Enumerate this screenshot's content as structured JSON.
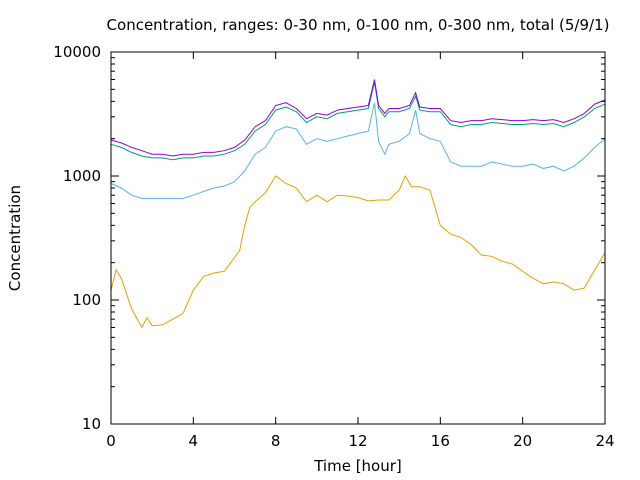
{
  "chart_data": {
    "type": "line",
    "title": "Concentration, ranges: 0-30 nm, 0-100 nm, 0-300 nm, total (5/9/1)",
    "xlabel": "Time [hour]",
    "ylabel": "Concentration",
    "xlim": [
      0,
      24
    ],
    "ylim": [
      10,
      10000
    ],
    "yscale": "log",
    "grid": false,
    "legend": "none",
    "x_ticks": [
      0,
      4,
      8,
      12,
      16,
      20,
      24
    ],
    "x_tick_labels": [
      "0",
      "4",
      "8",
      "12",
      "16",
      "20",
      "24"
    ],
    "y_ticks": [
      10,
      100,
      1000,
      10000
    ],
    "y_tick_labels": [
      "10",
      "100",
      "1000",
      "10000"
    ],
    "series": [
      {
        "color": "#e69f00",
        "x": [
          0,
          0.25,
          0.5,
          1,
          1.5,
          1.75,
          2,
          2.5,
          3,
          3.5,
          4,
          4.5,
          5,
          5.5,
          6,
          6.25,
          6.5,
          6.75,
          7,
          7.5,
          8,
          8.5,
          9,
          9.5,
          10,
          10.5,
          11,
          11.5,
          12,
          12.5,
          13,
          13.5,
          14,
          14.3,
          14.6,
          15,
          15.5,
          16,
          16.5,
          17,
          17.5,
          18,
          18.5,
          19,
          19.5,
          20,
          20.5,
          21,
          21.5,
          22,
          22.5,
          23,
          23.5,
          24
        ],
        "y": [
          120,
          175,
          150,
          85,
          60,
          72,
          62,
          63,
          70,
          78,
          120,
          155,
          165,
          170,
          220,
          250,
          400,
          560,
          620,
          730,
          1000,
          870,
          800,
          620,
          700,
          620,
          700,
          690,
          670,
          630,
          640,
          640,
          770,
          1000,
          820,
          820,
          770,
          400,
          340,
          320,
          280,
          230,
          225,
          205,
          195,
          170,
          150,
          135,
          140,
          135,
          120,
          125,
          175,
          240
        ]
      },
      {
        "color": "#56b4e9",
        "x": [
          0,
          0.5,
          1,
          1.5,
          2,
          2.5,
          3,
          3.5,
          4,
          4.5,
          5,
          5.5,
          6,
          6.5,
          7,
          7.5,
          8,
          8.5,
          9,
          9.5,
          10,
          10.5,
          11,
          11.5,
          12,
          12.5,
          12.8,
          13,
          13.3,
          13.5,
          14,
          14.5,
          14.8,
          15,
          15.5,
          16,
          16.5,
          17,
          17.5,
          18,
          18.5,
          19,
          19.5,
          20,
          20.5,
          21,
          21.5,
          22,
          22.5,
          23,
          23.5,
          24
        ],
        "y": [
          870,
          800,
          700,
          660,
          660,
          660,
          660,
          660,
          700,
          750,
          800,
          830,
          900,
          1100,
          1500,
          1700,
          2300,
          2500,
          2400,
          1800,
          2000,
          1900,
          2000,
          2100,
          2200,
          2300,
          3900,
          1900,
          1500,
          1800,
          1900,
          2200,
          3400,
          2200,
          2000,
          1900,
          1300,
          1200,
          1200,
          1200,
          1300,
          1250,
          1200,
          1200,
          1250,
          1150,
          1200,
          1100,
          1200,
          1400,
          1700,
          2000
        ]
      },
      {
        "color": "#009e73",
        "x": [
          0,
          0.5,
          1,
          1.5,
          2,
          2.5,
          3,
          3.5,
          4,
          4.5,
          5,
          5.5,
          6,
          6.5,
          7,
          7.5,
          8,
          8.5,
          9,
          9.5,
          10,
          10.5,
          11,
          11.5,
          12,
          12.5,
          12.8,
          13,
          13.3,
          13.5,
          14,
          14.5,
          14.8,
          15,
          15.5,
          16,
          16.5,
          17,
          17.5,
          18,
          18.5,
          19,
          19.5,
          20,
          20.5,
          21,
          21.5,
          22,
          22.5,
          23,
          23.5,
          24
        ],
        "y": [
          1800,
          1700,
          1550,
          1450,
          1400,
          1400,
          1350,
          1400,
          1400,
          1450,
          1450,
          1500,
          1600,
          1800,
          2300,
          2600,
          3400,
          3600,
          3300,
          2700,
          3000,
          2900,
          3200,
          3300,
          3400,
          3500,
          5700,
          3500,
          3000,
          3300,
          3300,
          3500,
          4400,
          3400,
          3300,
          3300,
          2600,
          2500,
          2600,
          2600,
          2700,
          2650,
          2600,
          2600,
          2650,
          2600,
          2650,
          2500,
          2700,
          3000,
          3500,
          3800
        ]
      },
      {
        "color": "#9400d3",
        "x": [
          0,
          0.5,
          1,
          1.5,
          2,
          2.5,
          3,
          3.5,
          4,
          4.5,
          5,
          5.5,
          6,
          6.5,
          7,
          7.5,
          8,
          8.5,
          9,
          9.5,
          10,
          10.5,
          11,
          11.5,
          12,
          12.5,
          12.8,
          13,
          13.3,
          13.5,
          14,
          14.5,
          14.8,
          15,
          15.5,
          16,
          16.5,
          17,
          17.5,
          18,
          18.5,
          19,
          19.5,
          20,
          20.5,
          21,
          21.5,
          22,
          22.5,
          23,
          23.5,
          24
        ],
        "y": [
          1950,
          1850,
          1700,
          1600,
          1500,
          1500,
          1450,
          1500,
          1500,
          1550,
          1550,
          1600,
          1700,
          1950,
          2500,
          2800,
          3700,
          3900,
          3500,
          2900,
          3200,
          3100,
          3400,
          3500,
          3600,
          3700,
          6000,
          3700,
          3200,
          3500,
          3500,
          3700,
          4700,
          3600,
          3500,
          3500,
          2800,
          2700,
          2800,
          2800,
          2900,
          2850,
          2800,
          2800,
          2850,
          2800,
          2850,
          2700,
          2900,
          3200,
          3800,
          4100
        ]
      }
    ]
  }
}
